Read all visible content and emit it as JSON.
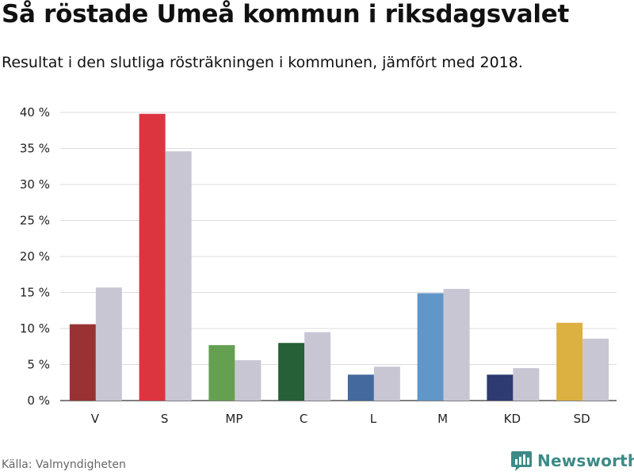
{
  "header": {
    "title": "Så röstade Umeå kommun i riksdagsvalet",
    "subtitle": "Resultat i den slutliga rösträkningen i kommunen, jämfört med 2018."
  },
  "footer": {
    "source": "Källa: Valmyndigheten",
    "brand": "Newsworthy",
    "brand_icon": "bar-chart-logo-icon"
  },
  "colors": {
    "previous": "#c8c6d3",
    "grid": "#dddddd",
    "brand": "#3c8a87"
  },
  "chart_data": {
    "type": "bar",
    "categories": [
      "V",
      "S",
      "MP",
      "C",
      "L",
      "M",
      "KD",
      "SD"
    ],
    "series": [
      {
        "values": [
          10.6,
          39.8,
          7.7,
          8.0,
          3.6,
          14.9,
          3.6,
          10.8
        ],
        "colors": [
          "#993333",
          "#dc3540",
          "#65a050",
          "#266037",
          "#43699e",
          "#6096c8",
          "#2e3b72",
          "#ddb042"
        ]
      },
      {
        "values": [
          15.7,
          34.6,
          5.6,
          9.5,
          4.7,
          15.5,
          4.5,
          8.6
        ],
        "color": "#c8c6d3"
      }
    ],
    "yticks": [
      "0 %",
      "5 %",
      "10 %",
      "15 %",
      "20 %",
      "25 %",
      "30 %",
      "35 %",
      "40 %"
    ],
    "ylim": [
      0,
      40
    ],
    "ytick_step": 5,
    "grid": true,
    "legend": "none"
  }
}
